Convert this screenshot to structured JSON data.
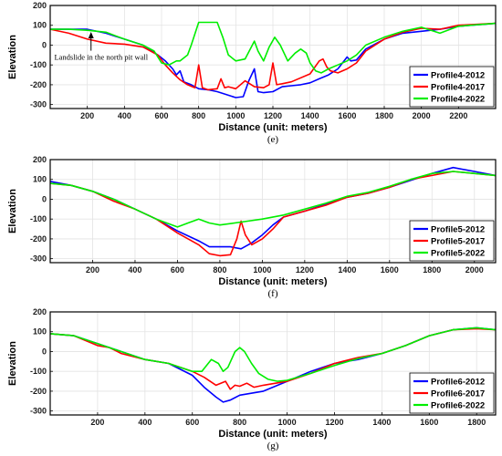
{
  "chart_data": [
    {
      "type": "line",
      "caption": "(e)",
      "xlabel": "Distance (unit: meters)",
      "ylabel": "Elevation",
      "xlim": [
        0,
        2400
      ],
      "ylim": [
        -320,
        200
      ],
      "x_ticks": [
        200,
        400,
        600,
        800,
        1000,
        1200,
        1400,
        1600,
        1800,
        2000,
        2200
      ],
      "y_ticks": [
        -300,
        -200,
        -100,
        0,
        100,
        200
      ],
      "grid": true,
      "legend_position": "bottom-right",
      "annotation": {
        "text": "Landslide in the north pit wall",
        "arrow_x": 220,
        "arrow_y": 62,
        "text_x": 22,
        "text_y": -65
      },
      "series": [
        {
          "name": "Profile4-2012",
          "color": "#0000ff",
          "x": [
            0,
            100,
            200,
            300,
            400,
            500,
            580,
            620,
            660,
            680,
            700,
            720,
            760,
            800,
            850,
            900,
            950,
            1000,
            1040,
            1070,
            1100,
            1120,
            1150,
            1200,
            1250,
            1300,
            1350,
            1400,
            1450,
            1500,
            1550,
            1600,
            1620,
            1650,
            1700,
            1800,
            1900,
            2000,
            2100,
            2200,
            2400
          ],
          "y": [
            80,
            80,
            80,
            60,
            30,
            0,
            -50,
            -80,
            -120,
            -150,
            -130,
            -185,
            -200,
            -220,
            -225,
            -235,
            -250,
            -265,
            -260,
            -180,
            -120,
            -235,
            -240,
            -235,
            -210,
            -205,
            -200,
            -190,
            -170,
            -150,
            -120,
            -60,
            -80,
            -75,
            -20,
            30,
            60,
            70,
            80,
            95,
            110
          ]
        },
        {
          "name": "Profile4-2017",
          "color": "#ff0000",
          "x": [
            0,
            100,
            200,
            300,
            400,
            500,
            580,
            620,
            660,
            700,
            740,
            780,
            800,
            820,
            850,
            900,
            920,
            940,
            960,
            1000,
            1050,
            1100,
            1150,
            1180,
            1200,
            1220,
            1250,
            1300,
            1400,
            1450,
            1470,
            1490,
            1510,
            1550,
            1600,
            1650,
            1700,
            1800,
            1900,
            2000,
            2100,
            2200,
            2400
          ],
          "y": [
            80,
            60,
            30,
            10,
            5,
            -10,
            -50,
            -100,
            -140,
            -175,
            -200,
            -215,
            -100,
            -215,
            -225,
            -220,
            -170,
            -215,
            -210,
            -220,
            -180,
            -210,
            -215,
            -200,
            -90,
            -200,
            -195,
            -185,
            -145,
            -80,
            -70,
            -110,
            -130,
            -140,
            -120,
            -90,
            -30,
            30,
            65,
            85,
            80,
            100,
            110
          ]
        },
        {
          "name": "Profile4-2022",
          "color": "#00ee00",
          "x": [
            0,
            100,
            200,
            300,
            400,
            500,
            560,
            600,
            640,
            680,
            700,
            740,
            760,
            800,
            850,
            900,
            930,
            960,
            1000,
            1050,
            1100,
            1120,
            1150,
            1180,
            1210,
            1240,
            1280,
            1320,
            1350,
            1380,
            1400,
            1430,
            1460,
            1500,
            1550,
            1600,
            1650,
            1700,
            1800,
            1900,
            2000,
            2100,
            2200,
            2400
          ],
          "y": [
            80,
            80,
            75,
            65,
            30,
            0,
            -30,
            -90,
            -100,
            -80,
            -80,
            -50,
            0,
            115,
            115,
            115,
            40,
            -50,
            -80,
            -70,
            20,
            -30,
            -80,
            -10,
            40,
            0,
            -80,
            -40,
            -20,
            -40,
            -90,
            -130,
            -140,
            -120,
            -100,
            -80,
            -50,
            0,
            40,
            70,
            90,
            60,
            95,
            110
          ]
        }
      ]
    },
    {
      "type": "line",
      "caption": "(f)",
      "xlabel": "Distance (unit: meters)",
      "ylabel": "Elevation",
      "xlim": [
        0,
        2100
      ],
      "ylim": [
        -320,
        200
      ],
      "x_ticks": [
        200,
        400,
        600,
        800,
        1000,
        1200,
        1400,
        1600,
        1800,
        2000
      ],
      "y_ticks": [
        -300,
        -200,
        -100,
        0,
        100,
        200
      ],
      "grid": true,
      "legend_position": "bottom-right",
      "series": [
        {
          "name": "Profile5-2012",
          "color": "#0000ff",
          "x": [
            0,
            100,
            200,
            300,
            400,
            500,
            600,
            700,
            750,
            800,
            850,
            900,
            950,
            1000,
            1050,
            1100,
            1200,
            1300,
            1400,
            1500,
            1600,
            1700,
            1800,
            1900,
            2000,
            2100
          ],
          "y": [
            90,
            70,
            40,
            0,
            -50,
            -100,
            -160,
            -210,
            -240,
            -240,
            -240,
            -250,
            -220,
            -180,
            -130,
            -90,
            -60,
            -25,
            10,
            30,
            60,
            95,
            130,
            160,
            140,
            120
          ]
        },
        {
          "name": "Profile5-2017",
          "color": "#ff0000",
          "x": [
            0,
            100,
            200,
            300,
            400,
            500,
            600,
            700,
            750,
            800,
            850,
            880,
            900,
            920,
            950,
            1000,
            1050,
            1100,
            1200,
            1300,
            1400,
            1500,
            1600,
            1700,
            1800,
            1900,
            2000,
            2100
          ],
          "y": [
            80,
            70,
            40,
            -10,
            -50,
            -100,
            -170,
            -230,
            -275,
            -285,
            -280,
            -200,
            -110,
            -180,
            -230,
            -200,
            -150,
            -90,
            -60,
            -30,
            10,
            30,
            60,
            100,
            120,
            140,
            130,
            120
          ]
        },
        {
          "name": "Profile5-2022",
          "color": "#00ee00",
          "x": [
            0,
            100,
            200,
            300,
            400,
            500,
            600,
            650,
            700,
            750,
            800,
            900,
            1000,
            1100,
            1200,
            1300,
            1400,
            1500,
            1600,
            1700,
            1800,
            1900,
            2000,
            2100
          ],
          "y": [
            80,
            70,
            40,
            0,
            -50,
            -100,
            -140,
            -120,
            -100,
            -120,
            -130,
            -115,
            -100,
            -80,
            -50,
            -20,
            15,
            35,
            65,
            100,
            130,
            140,
            130,
            120
          ]
        }
      ]
    },
    {
      "type": "line",
      "caption": "(g)",
      "xlabel": "Distance (unit: meters)",
      "ylabel": "Elevation",
      "xlim": [
        0,
        1880
      ],
      "ylim": [
        -320,
        200
      ],
      "x_ticks": [
        200,
        400,
        600,
        800,
        1000,
        1200,
        1400,
        1600,
        1800
      ],
      "y_ticks": [
        -300,
        -200,
        -100,
        0,
        100,
        200
      ],
      "grid": true,
      "legend_position": "bottom-right",
      "series": [
        {
          "name": "Profile6-2012",
          "color": "#0000ff",
          "x": [
            0,
            100,
            200,
            300,
            400,
            500,
            600,
            650,
            700,
            730,
            760,
            800,
            900,
            1000,
            1100,
            1200,
            1300,
            1400,
            1500,
            1600,
            1700,
            1800,
            1880
          ],
          "y": [
            90,
            80,
            40,
            0,
            -40,
            -60,
            -120,
            -180,
            -230,
            -255,
            -245,
            -220,
            -200,
            -150,
            -100,
            -60,
            -40,
            -10,
            30,
            80,
            110,
            120,
            110
          ]
        },
        {
          "name": "Profile6-2017",
          "color": "#ff0000",
          "x": [
            0,
            100,
            200,
            250,
            300,
            400,
            500,
            600,
            650,
            700,
            740,
            760,
            780,
            800,
            830,
            860,
            900,
            1000,
            1100,
            1200,
            1300,
            1400,
            1500,
            1600,
            1700,
            1800,
            1880
          ],
          "y": [
            90,
            80,
            30,
            20,
            -10,
            -40,
            -60,
            -100,
            -130,
            -170,
            -150,
            -190,
            -170,
            -175,
            -160,
            -180,
            -170,
            -150,
            -110,
            -60,
            -30,
            -10,
            30,
            80,
            110,
            115,
            110
          ]
        },
        {
          "name": "Profile6-2022",
          "color": "#00ee00",
          "x": [
            0,
            100,
            200,
            300,
            400,
            500,
            600,
            640,
            680,
            710,
            730,
            750,
            780,
            800,
            820,
            850,
            880,
            920,
            960,
            1000,
            1100,
            1200,
            1300,
            1400,
            1500,
            1600,
            1700,
            1800,
            1880
          ],
          "y": [
            90,
            80,
            40,
            0,
            -40,
            -60,
            -100,
            -100,
            -40,
            -60,
            -100,
            -80,
            0,
            20,
            0,
            -60,
            -110,
            -140,
            -150,
            -145,
            -110,
            -70,
            -35,
            -10,
            30,
            80,
            110,
            120,
            110
          ]
        }
      ]
    }
  ]
}
